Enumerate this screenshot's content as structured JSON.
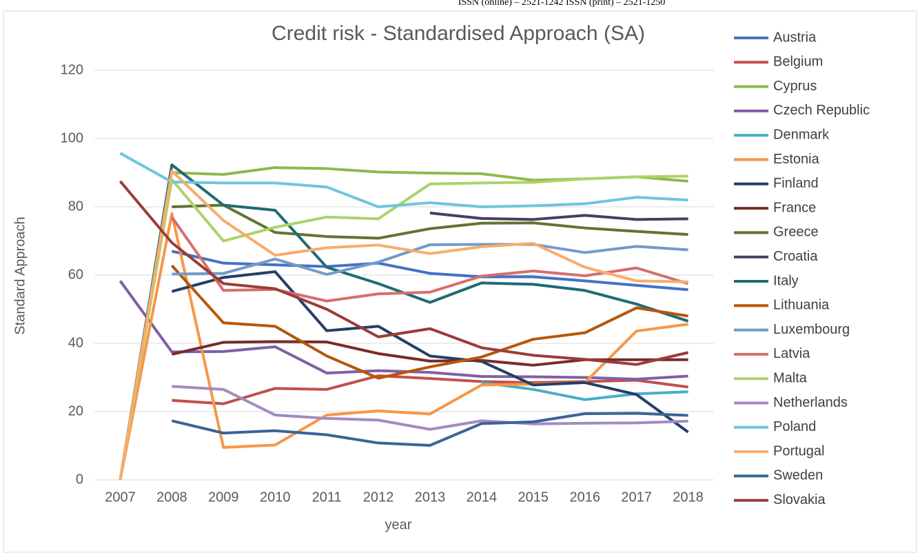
{
  "header": "ISSN (online) – 2521-1242 ISSN (print) – 2521-1250",
  "chart_data": {
    "type": "line",
    "title": "Credit risk - Standardised Approach (SA)",
    "x_label": "year",
    "y_label": "Standard Approach",
    "categories": [
      "2007",
      "2008",
      "2009",
      "2010",
      "2011",
      "2012",
      "2013",
      "2014",
      "2015",
      "2016",
      "2017",
      "2018"
    ],
    "ylim": [
      0,
      120
    ],
    "yticks": [
      0,
      20,
      40,
      60,
      80,
      100,
      120
    ],
    "grid": true,
    "legend": "right",
    "series": [
      {
        "name": "Austria",
        "color": "#4472c4",
        "values": [
          null,
          67,
          63.5,
          63,
          62.5,
          63.5,
          60.5,
          59.5,
          59.5,
          58.3,
          57,
          55.7
        ]
      },
      {
        "name": "Belgium",
        "color": "#c0504d",
        "values": [
          null,
          23.3,
          22.3,
          26.8,
          26.5,
          30.5,
          29.7,
          28.8,
          28.5,
          28.8,
          29.2,
          27.2
        ]
      },
      {
        "name": "Cyprus",
        "color": "#8fb94a",
        "values": [
          null,
          90,
          89.5,
          91.5,
          91.2,
          90.2,
          89.9,
          89.7,
          87.8,
          88.2,
          88.8,
          87.5
        ]
      },
      {
        "name": "Czech Republic",
        "color": "#7f5fa6",
        "values": [
          58.3,
          37.5,
          37.6,
          39,
          31.3,
          32,
          31.5,
          30.3,
          30.2,
          30,
          29.5,
          30.4
        ]
      },
      {
        "name": "Denmark",
        "color": "#4bacc6",
        "values": [
          null,
          null,
          null,
          null,
          null,
          null,
          null,
          28.5,
          26.5,
          23.5,
          25.2,
          25.8
        ]
      },
      {
        "name": "Estonia",
        "color": "#f79646",
        "values": [
          0,
          78,
          9.5,
          10.2,
          19,
          20.2,
          19.3,
          27.8,
          28,
          28.5,
          43.6,
          45.6
        ]
      },
      {
        "name": "Finland",
        "color": "#243f66",
        "values": [
          null,
          55.2,
          59.3,
          61,
          43.7,
          45,
          36.3,
          34.7,
          27.8,
          28.5,
          25,
          14
        ]
      },
      {
        "name": "France",
        "color": "#772c2a",
        "values": [
          null,
          36.8,
          40.3,
          40.5,
          40.4,
          37,
          34.8,
          35,
          33.6,
          35.2,
          35.2,
          35.2
        ]
      },
      {
        "name": "Greece",
        "color": "#5f7530",
        "values": [
          null,
          80,
          80.5,
          72.5,
          71.3,
          70.8,
          73.6,
          75.2,
          75.3,
          73.8,
          72.8,
          71.9
        ]
      },
      {
        "name": "Croatia",
        "color": "#4d3b62",
        "values": [
          null,
          null,
          null,
          null,
          null,
          null,
          78.2,
          76.6,
          76.3,
          77.5,
          76.3,
          76.5
        ]
      },
      {
        "name": "Italy",
        "color": "#1f6b75",
        "values": [
          0,
          92.3,
          80.5,
          79,
          62.3,
          57.5,
          52,
          57.7,
          57.3,
          55.5,
          51.5,
          46.5
        ]
      },
      {
        "name": "Lithuania",
        "color": "#b65708",
        "values": [
          null,
          62.8,
          46,
          45,
          36.3,
          29.8,
          33.1,
          36,
          41.2,
          43.1,
          50.4,
          48
        ]
      },
      {
        "name": "Luxembourg",
        "color": "#729aca",
        "values": [
          null,
          60.3,
          60.5,
          64.7,
          60.2,
          63.8,
          68.9,
          69,
          69,
          66.6,
          68.4,
          67.4
        ]
      },
      {
        "name": "Latvia",
        "color": "#d46f6c",
        "values": [
          null,
          77,
          55.5,
          55.8,
          52.4,
          54.5,
          55,
          59.7,
          61.2,
          59.8,
          62.1,
          57.5
        ]
      },
      {
        "name": "Malta",
        "color": "#acd26a",
        "values": [
          0,
          88,
          70,
          74,
          77,
          76.5,
          86.7,
          87,
          87.2,
          88.2,
          88.8,
          89
        ]
      },
      {
        "name": "Netherlands",
        "color": "#a28bc0",
        "values": [
          null,
          27.4,
          26.5,
          19,
          18,
          17.5,
          14.8,
          17.3,
          16.4,
          16.6,
          16.7,
          17.2
        ]
      },
      {
        "name": "Poland",
        "color": "#6fc5dc",
        "values": [
          95.7,
          87.3,
          87,
          87,
          85.8,
          80,
          81.2,
          80,
          80.3,
          80.9,
          82.8,
          82
        ]
      },
      {
        "name": "Portugal",
        "color": "#f9ac6a",
        "values": [
          0,
          90.5,
          76,
          65.8,
          68,
          68.8,
          66.3,
          68.3,
          69.3,
          62.3,
          58.3,
          58
        ]
      },
      {
        "name": "Sweden",
        "color": "#3a6497",
        "values": [
          null,
          17.3,
          13.7,
          14.4,
          13.2,
          10.8,
          10.1,
          16.5,
          17,
          19.4,
          19.5,
          18.9
        ]
      },
      {
        "name": "Slovakia",
        "color": "#9c3b38",
        "values": [
          87.5,
          69.5,
          57.5,
          56,
          50,
          41.9,
          44.3,
          38.7,
          36.5,
          35.3,
          33.8,
          37.3
        ]
      }
    ]
  }
}
